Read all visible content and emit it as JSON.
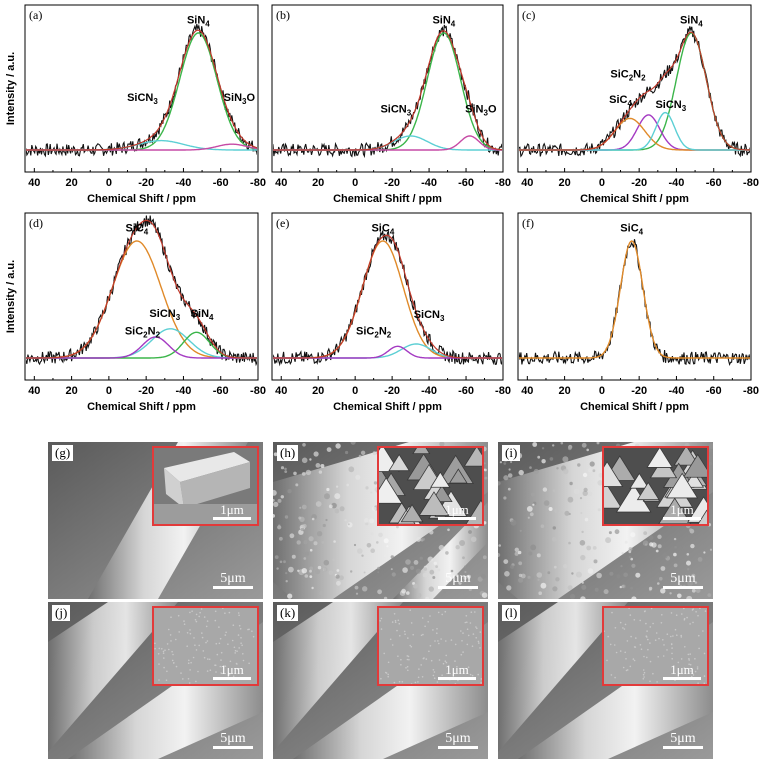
{
  "chart_data": [
    {
      "panel": "(a)",
      "type": "line",
      "xlabel": "Chemical Shift / ppm",
      "ylabel": "Intensity / a.u.",
      "xlim": [
        45,
        -80
      ],
      "xticks": [
        40,
        20,
        0,
        -20,
        -40,
        -60,
        -80
      ],
      "peaks": [
        {
          "name": "SiN4",
          "sub": [
            "SiN",
            "4"
          ],
          "center": -48,
          "height": 1.0,
          "width": 10,
          "color": "#3bb54a"
        },
        {
          "name": "SiCN3",
          "sub": [
            "SiCN",
            "3"
          ],
          "center": -28,
          "height": 0.08,
          "width": 12,
          "color": "#5ccfd4"
        },
        {
          "name": "SiN3O",
          "sub": [
            "SiN",
            "3",
            "O"
          ],
          "center": -66,
          "height": 0.05,
          "width": 8,
          "color": "#c64aa5"
        }
      ],
      "labels": [
        {
          "series": 0,
          "x": -48,
          "y": 1.08
        },
        {
          "series": 1,
          "x": -18,
          "y": 0.42
        },
        {
          "series": 2,
          "x": -70,
          "y": 0.42
        }
      ]
    },
    {
      "panel": "(b)",
      "type": "line",
      "xlabel": "Chemical Shift / ppm",
      "ylabel": "",
      "xlim": [
        45,
        -80
      ],
      "xticks": [
        40,
        20,
        0,
        -20,
        -40,
        -60,
        -80
      ],
      "peaks": [
        {
          "name": "SiN4",
          "sub": [
            "SiN",
            "4"
          ],
          "center": -48,
          "height": 1.0,
          "width": 9,
          "color": "#3bb54a"
        },
        {
          "name": "SiCN3",
          "sub": [
            "SiCN",
            "3"
          ],
          "center": -30,
          "height": 0.12,
          "width": 9,
          "color": "#5ccfd4"
        },
        {
          "name": "SiN3O",
          "sub": [
            "SiN",
            "3",
            "O"
          ],
          "center": -62,
          "height": 0.12,
          "width": 5,
          "color": "#c64aa5"
        }
      ],
      "labels": [
        {
          "series": 0,
          "x": -48,
          "y": 1.08
        },
        {
          "series": 1,
          "x": -22,
          "y": 0.32
        },
        {
          "series": 2,
          "x": -68,
          "y": 0.32
        }
      ]
    },
    {
      "panel": "(c)",
      "type": "line",
      "xlabel": "Chemical Shift / ppm",
      "ylabel": "",
      "xlim": [
        45,
        -80
      ],
      "xticks": [
        40,
        20,
        0,
        -20,
        -40,
        -60,
        -80
      ],
      "peaks": [
        {
          "name": "SiN4",
          "sub": [
            "SiN",
            "4"
          ],
          "center": -48,
          "height": 1.0,
          "width": 8,
          "color": "#3bb54a"
        },
        {
          "name": "SiC2N2",
          "sub": [
            "SiC",
            "2",
            "N",
            "2"
          ],
          "center": -25,
          "height": 0.3,
          "width": 6,
          "color": "#a43ac2"
        },
        {
          "name": "SiC4",
          "sub": [
            "SiC",
            "4"
          ],
          "center": -15,
          "height": 0.27,
          "width": 8,
          "color": "#e08a2a"
        },
        {
          "name": "SiCN3",
          "sub": [
            "SiCN",
            "3"
          ],
          "center": -34,
          "height": 0.32,
          "width": 5,
          "color": "#5ccfd4"
        }
      ],
      "labels": [
        {
          "series": 0,
          "x": -48,
          "y": 1.08
        },
        {
          "series": 1,
          "x": -14,
          "y": 0.62
        },
        {
          "series": 2,
          "x": -10,
          "y": 0.4
        },
        {
          "series": 3,
          "x": -37,
          "y": 0.36
        }
      ]
    },
    {
      "panel": "(d)",
      "type": "line",
      "xlabel": "Chemical Shift / ppm",
      "ylabel": "Intensity / a.u.",
      "xlim": [
        45,
        -80
      ],
      "xticks": [
        40,
        20,
        0,
        -20,
        -40,
        -60,
        -80
      ],
      "peaks": [
        {
          "name": "SiC4",
          "sub": [
            "SiC",
            "4"
          ],
          "center": -15,
          "height": 1.0,
          "width": 13,
          "color": "#e08a2a"
        },
        {
          "name": "SiCN3",
          "sub": [
            "SiCN",
            "3"
          ],
          "center": -33,
          "height": 0.25,
          "width": 10,
          "color": "#5ccfd4"
        },
        {
          "name": "SiN4",
          "sub": [
            "SiN",
            "4"
          ],
          "center": -47,
          "height": 0.22,
          "width": 7,
          "color": "#3bb54a"
        },
        {
          "name": "SiC2N2",
          "sub": [
            "SiC",
            "2",
            "N",
            "2"
          ],
          "center": -25,
          "height": 0.18,
          "width": 7,
          "color": "#a43ac2"
        }
      ],
      "labels": [
        {
          "series": 0,
          "x": -15,
          "y": 1.08
        },
        {
          "series": 1,
          "x": -30,
          "y": 0.35
        },
        {
          "series": 2,
          "x": -50,
          "y": 0.35
        },
        {
          "series": 3,
          "x": -18,
          "y": 0.2
        }
      ]
    },
    {
      "panel": "(e)",
      "type": "line",
      "xlabel": "Chemical Shift / ppm",
      "ylabel": "",
      "xlim": [
        45,
        -80
      ],
      "xticks": [
        40,
        20,
        0,
        -20,
        -40,
        -60,
        -80
      ],
      "peaks": [
        {
          "name": "SiC4",
          "sub": [
            "SiC",
            "4"
          ],
          "center": -15,
          "height": 1.0,
          "width": 11,
          "color": "#e08a2a"
        },
        {
          "name": "SiCN3",
          "sub": [
            "SiCN",
            "3"
          ],
          "center": -33,
          "height": 0.12,
          "width": 8,
          "color": "#5ccfd4"
        },
        {
          "name": "SiC2N2",
          "sub": [
            "SiC",
            "2",
            "N",
            "2"
          ],
          "center": -23,
          "height": 0.1,
          "width": 5,
          "color": "#a43ac2"
        }
      ],
      "labels": [
        {
          "series": 0,
          "x": -15,
          "y": 1.08
        },
        {
          "series": 1,
          "x": -40,
          "y": 0.34
        },
        {
          "series": 2,
          "x": -10,
          "y": 0.2
        }
      ]
    },
    {
      "panel": "(f)",
      "type": "line",
      "xlabel": "Chemical Shift / ppm",
      "ylabel": "",
      "xlim": [
        45,
        -80
      ],
      "xticks": [
        40,
        20,
        0,
        -20,
        -40,
        -60,
        -80
      ],
      "peaks": [
        {
          "name": "SiC4",
          "sub": [
            "SiC",
            "4"
          ],
          "center": -16,
          "height": 1.0,
          "width": 6,
          "color": "#e08a2a"
        }
      ],
      "labels": [
        {
          "series": 0,
          "x": -16,
          "y": 1.08
        }
      ]
    }
  ],
  "sem_panels": [
    {
      "label": "(g)",
      "scale": "5μm",
      "inset_scale": "1μm"
    },
    {
      "label": "(h)",
      "scale": "5μm",
      "inset_scale": "1μm"
    },
    {
      "label": "(i)",
      "scale": "5μm",
      "inset_scale": "1μm"
    },
    {
      "label": "(j)",
      "scale": "5μm",
      "inset_scale": "1μm"
    },
    {
      "label": "(k)",
      "scale": "5μm",
      "inset_scale": "1μm"
    },
    {
      "label": "(l)",
      "scale": "5μm",
      "inset_scale": "1μm"
    }
  ],
  "colors": {
    "data": "#111111",
    "envelope": "#c0392b",
    "inset_border": "#e23a3a"
  }
}
